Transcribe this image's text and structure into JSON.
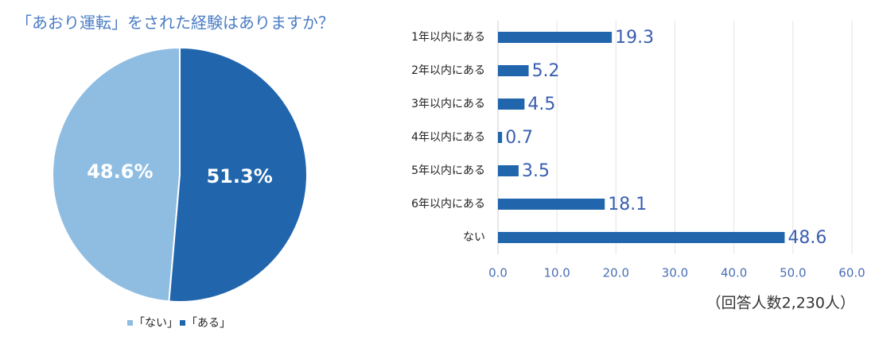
{
  "chart_data": [
    {
      "type": "pie",
      "title": "「あおり運転」をされた経験はありますか？",
      "categories": [
        "「ない」",
        "「ある」"
      ],
      "values": [
        48.6,
        51.3
      ],
      "value_labels": [
        "48.6%",
        "51.3%"
      ],
      "colors": [
        "#8fbde2",
        "#2166ad"
      ],
      "legend": "bottom"
    },
    {
      "type": "hbar",
      "categories": [
        "1年以内にある",
        "2年以内にある",
        "3年以内にある",
        "4年以内にある",
        "5年以内にある",
        "6年以内にある",
        "ない"
      ],
      "values": [
        19.3,
        5.2,
        4.5,
        0.7,
        3.5,
        18.1,
        48.6
      ],
      "color": "#2166ad",
      "xlim": [
        0,
        60
      ],
      "xticks": [
        {
          "value": 0,
          "label": "0.0"
        },
        {
          "value": 10,
          "label": "10.0"
        },
        {
          "value": 20,
          "label": "20.0"
        },
        {
          "value": 30,
          "label": "30.0"
        },
        {
          "value": 40,
          "label": "40.0"
        },
        {
          "value": 50,
          "label": "50.0"
        },
        {
          "value": 60,
          "label": "60.0"
        }
      ],
      "grid": true,
      "annotation": "（回答人数2,230人）"
    }
  ]
}
